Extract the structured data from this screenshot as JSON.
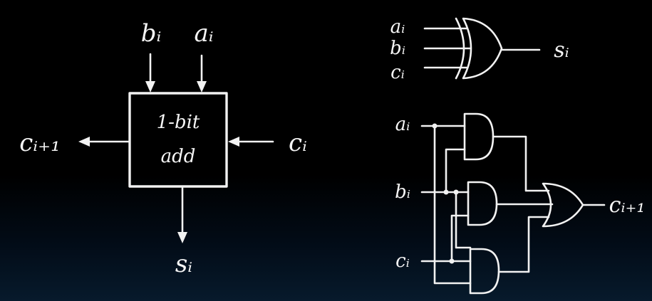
{
  "block": {
    "line1": "1-bit",
    "line2": "add",
    "input_b": "bᵢ",
    "input_a": "aᵢ",
    "carry_in": "cᵢ",
    "carry_out": "cᵢ₊₁",
    "sum_out": "sᵢ"
  },
  "xor_circuit": {
    "in_a": "aᵢ",
    "in_b": "bᵢ",
    "in_c": "cᵢ",
    "out": "sᵢ"
  },
  "carry_circuit": {
    "in_a": "aᵢ",
    "in_b": "bᵢ",
    "in_c": "cᵢ",
    "out": "cᵢ₊₁"
  }
}
